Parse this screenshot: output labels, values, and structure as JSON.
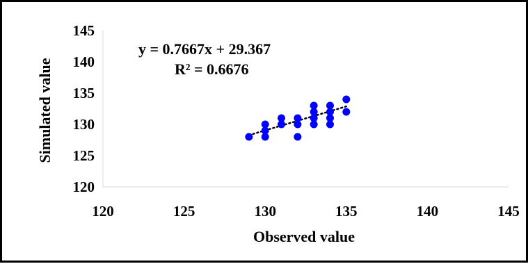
{
  "chart_data": {
    "type": "scatter",
    "xlabel": "Observed value",
    "ylabel": "Simulated value",
    "xlim": [
      120,
      145
    ],
    "ylim": [
      120,
      145
    ],
    "x_ticks": [
      "120",
      "125",
      "130",
      "135",
      "140",
      "145"
    ],
    "y_ticks": [
      "120",
      "125",
      "130",
      "135",
      "140",
      "145"
    ],
    "grid": false,
    "legend": "none",
    "marker_color": "#0000ff",
    "trendline": {
      "style": "dotted",
      "color": "#000000",
      "slope": 0.7667,
      "intercept": 29.367,
      "x_range": [
        129,
        135
      ],
      "equation": "y = 0.7667x + 29.367",
      "r_squared": "R² = 0.6676"
    },
    "points": [
      {
        "x": 129,
        "y": 128
      },
      {
        "x": 130,
        "y": 128
      },
      {
        "x": 130,
        "y": 129
      },
      {
        "x": 130,
        "y": 130
      },
      {
        "x": 131,
        "y": 130
      },
      {
        "x": 131,
        "y": 131
      },
      {
        "x": 132,
        "y": 128
      },
      {
        "x": 132,
        "y": 130
      },
      {
        "x": 132,
        "y": 131
      },
      {
        "x": 133,
        "y": 130
      },
      {
        "x": 133,
        "y": 131
      },
      {
        "x": 133,
        "y": 132
      },
      {
        "x": 133,
        "y": 133
      },
      {
        "x": 134,
        "y": 130
      },
      {
        "x": 134,
        "y": 131
      },
      {
        "x": 134,
        "y": 132
      },
      {
        "x": 134,
        "y": 133
      },
      {
        "x": 135,
        "y": 132
      },
      {
        "x": 135,
        "y": 134
      }
    ]
  }
}
